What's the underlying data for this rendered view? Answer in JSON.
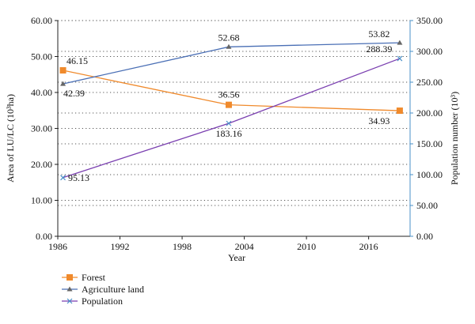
{
  "chart_data": {
    "type": "line",
    "x_axis": {
      "label": "Year",
      "range": [
        1986,
        2020
      ],
      "ticks": [
        "1986",
        "1992",
        "1998",
        "2004",
        "2010",
        "2016"
      ],
      "tick_values": [
        1986,
        1992,
        1998,
        2004,
        2010,
        2016
      ]
    },
    "y_left": {
      "label": "Area of LU/LC (10³ha)",
      "range": [
        0,
        60
      ],
      "ticks": [
        "0.00",
        "10.00",
        "20.00",
        "30.00",
        "40.00",
        "50.00",
        "60.00"
      ],
      "tick_values": [
        0,
        10,
        20,
        30,
        40,
        50,
        60
      ]
    },
    "y_right": {
      "label": "Population number (10³)",
      "range": [
        0,
        350
      ],
      "ticks": [
        "0.00",
        "50.00",
        "100.00",
        "150.00",
        "200.00",
        "250.00",
        "300.00",
        "350.00"
      ],
      "tick_values": [
        0,
        50,
        100,
        150,
        200,
        250,
        300,
        350
      ],
      "color": "#4a90c8"
    },
    "grid": "horizontal dotted",
    "legend_position": "bottom-left",
    "series": [
      {
        "name": "Forest",
        "axis": "left",
        "color": "#f08a2c",
        "line_color": "#f08a2c",
        "marker": "square",
        "x": [
          1986.5,
          2002.5,
          2019.0
        ],
        "y": [
          46.15,
          36.56,
          34.93
        ],
        "labels": [
          "46.15",
          "36.56",
          "34.93"
        ]
      },
      {
        "name": "Agriculture land",
        "axis": "left",
        "color": "#4a6fb5",
        "line_color": "#4a6fb5",
        "marker": "triangle",
        "x": [
          1986.5,
          2002.5,
          2019.0
        ],
        "y": [
          42.39,
          52.68,
          53.82
        ],
        "labels": [
          "42.39",
          "52.68",
          "53.82"
        ]
      },
      {
        "name": "Population",
        "axis": "right",
        "color": "#4a90c8",
        "line_color": "#7a3fb0",
        "marker": "x",
        "x": [
          1986.5,
          2002.5,
          2019.0
        ],
        "y": [
          95.13,
          183.16,
          288.39
        ],
        "labels": [
          "95.13",
          "183.16",
          "288.39"
        ]
      }
    ]
  }
}
